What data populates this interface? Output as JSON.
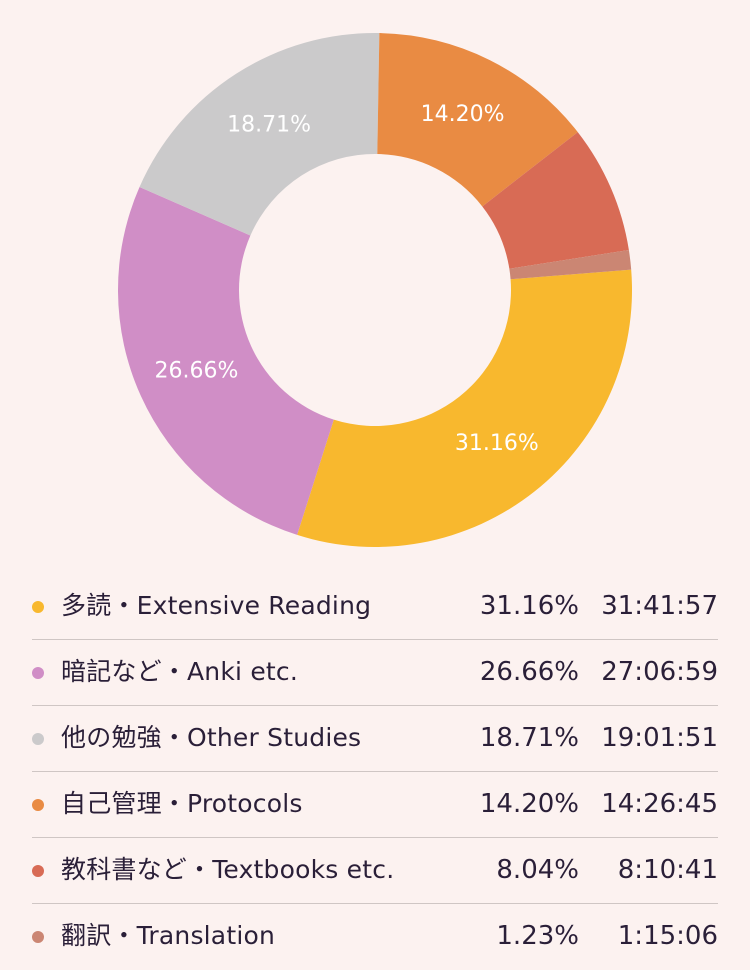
{
  "chart_data": {
    "type": "pie",
    "donut": true,
    "categories": [
      "多読・Extensive Reading",
      "暗記など・Anki etc.",
      "他の勉強・Other Studies",
      "自己管理・Protocols",
      "教科書など・Textbooks etc.",
      "翻訳・Translation"
    ],
    "values": [
      31.16,
      26.66,
      18.71,
      14.2,
      8.04,
      1.23
    ],
    "slice_labels": [
      "31.16%",
      "26.66%",
      "18.71%",
      "14.20%",
      "",
      ""
    ],
    "colors": [
      "#f8b82e",
      "#d08ec6",
      "#cbcacb",
      "#e98b43",
      "#d86b55",
      "#cb8673"
    ],
    "start_offset_percent": 23.74
  },
  "legend": {
    "items": [
      {
        "label": "多読・Extensive Reading",
        "percent": "31.16%",
        "time": "31:41:57",
        "color": "#f8b82e"
      },
      {
        "label": "暗記など・Anki etc.",
        "percent": "26.66%",
        "time": "27:06:59",
        "color": "#d08ec6"
      },
      {
        "label": "他の勉強・Other Studies",
        "percent": "18.71%",
        "time": "19:01:51",
        "color": "#cbcacb"
      },
      {
        "label": "自己管理・Protocols",
        "percent": "14.20%",
        "time": "14:26:45",
        "color": "#e98b43"
      },
      {
        "label": "教科書など・Textbooks etc.",
        "percent": "8.04%",
        "time": "8:10:41",
        "color": "#d86b55"
      },
      {
        "label": "翻訳・Translation",
        "percent": "1.23%",
        "time": "1:15:06",
        "color": "#cb8673"
      }
    ]
  }
}
